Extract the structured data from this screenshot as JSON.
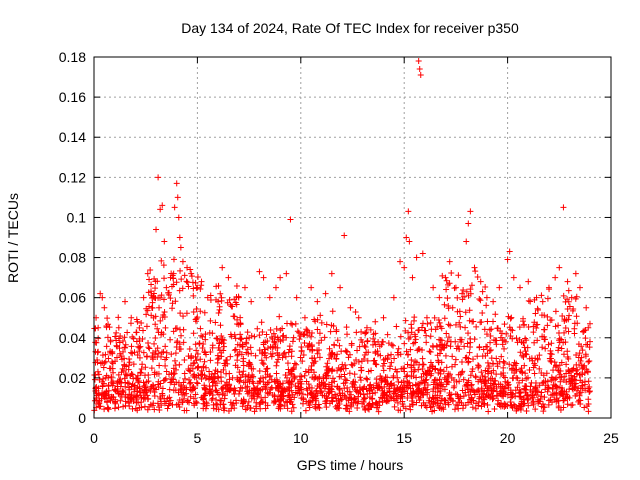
{
  "chart_data": {
    "type": "scatter",
    "title": "Day 134 of 2024, Rate Of TEC Index for receiver p350",
    "xlabel": "GPS time / hours",
    "ylabel": "ROTI / TECUs",
    "xlim": [
      0,
      25
    ],
    "ylim": [
      0,
      0.18
    ],
    "x_ticks": [
      0,
      5,
      10,
      15,
      20,
      25
    ],
    "x_tick_labels": [
      "0",
      "5",
      "10",
      "15",
      "20",
      "25"
    ],
    "y_ticks": [
      0,
      0.02,
      0.04,
      0.06,
      0.08,
      0.1,
      0.12,
      0.14,
      0.16,
      0.18
    ],
    "y_tick_labels": [
      "0",
      "0.02",
      "0.04",
      "0.06",
      "0.08",
      "0.1",
      "0.12",
      "0.14",
      "0.16",
      "0.18"
    ],
    "grid": true,
    "marker": "+",
    "color": "#ff0000",
    "series": [
      {
        "name": "ROTI",
        "points": [
          [
            0.1,
            0.05
          ],
          [
            0.2,
            0.045
          ],
          [
            0.3,
            0.062
          ],
          [
            0.4,
            0.06
          ],
          [
            0.5,
            0.055
          ],
          [
            0.8,
            0.038
          ],
          [
            1.2,
            0.045
          ],
          [
            1.5,
            0.058
          ],
          [
            1.8,
            0.05
          ],
          [
            2.1,
            0.048
          ],
          [
            2.4,
            0.06
          ],
          [
            2.6,
            0.072
          ],
          [
            2.8,
            0.055
          ],
          [
            3.0,
            0.094
          ],
          [
            3.1,
            0.12
          ],
          [
            3.2,
            0.104
          ],
          [
            3.3,
            0.106
          ],
          [
            3.4,
            0.088
          ],
          [
            3.5,
            0.065
          ],
          [
            3.7,
            0.07
          ],
          [
            3.9,
            0.105
          ],
          [
            4.0,
            0.117
          ],
          [
            4.05,
            0.11
          ],
          [
            4.1,
            0.1
          ],
          [
            4.15,
            0.09
          ],
          [
            4.2,
            0.085
          ],
          [
            4.3,
            0.078
          ],
          [
            4.5,
            0.075
          ],
          [
            4.7,
            0.072
          ],
          [
            5.0,
            0.065
          ],
          [
            5.2,
            0.068
          ],
          [
            5.5,
            0.06
          ],
          [
            6.0,
            0.058
          ],
          [
            6.2,
            0.075
          ],
          [
            6.5,
            0.07
          ],
          [
            7.0,
            0.06
          ],
          [
            7.3,
            0.065
          ],
          [
            7.6,
            0.058
          ],
          [
            8.0,
            0.073
          ],
          [
            8.2,
            0.07
          ],
          [
            8.5,
            0.06
          ],
          [
            8.8,
            0.065
          ],
          [
            9.0,
            0.07
          ],
          [
            9.3,
            0.072
          ],
          [
            9.5,
            0.099
          ],
          [
            9.8,
            0.06
          ],
          [
            10.2,
            0.05
          ],
          [
            10.5,
            0.065
          ],
          [
            10.8,
            0.058
          ],
          [
            11.2,
            0.062
          ],
          [
            11.5,
            0.072
          ],
          [
            11.9,
            0.065
          ],
          [
            12.1,
            0.091
          ],
          [
            12.4,
            0.055
          ],
          [
            12.8,
            0.05
          ],
          [
            13.2,
            0.045
          ],
          [
            13.6,
            0.048
          ],
          [
            14.0,
            0.05
          ],
          [
            14.5,
            0.06
          ],
          [
            14.8,
            0.078
          ],
          [
            15.0,
            0.075
          ],
          [
            15.1,
            0.09
          ],
          [
            15.2,
            0.103
          ],
          [
            15.25,
            0.088
          ],
          [
            15.4,
            0.07
          ],
          [
            15.6,
            0.08
          ],
          [
            15.7,
            0.178
          ],
          [
            15.75,
            0.174
          ],
          [
            15.8,
            0.171
          ],
          [
            15.9,
            0.082
          ],
          [
            16.1,
            0.05
          ],
          [
            16.4,
            0.065
          ],
          [
            16.7,
            0.06
          ],
          [
            17.0,
            0.07
          ],
          [
            17.2,
            0.078
          ],
          [
            17.5,
            0.065
          ],
          [
            17.8,
            0.062
          ],
          [
            18.0,
            0.088
          ],
          [
            18.1,
            0.097
          ],
          [
            18.2,
            0.103
          ],
          [
            18.4,
            0.075
          ],
          [
            18.7,
            0.068
          ],
          [
            19.0,
            0.06
          ],
          [
            19.3,
            0.058
          ],
          [
            19.6,
            0.065
          ],
          [
            20.0,
            0.079
          ],
          [
            20.1,
            0.083
          ],
          [
            20.3,
            0.07
          ],
          [
            20.6,
            0.065
          ],
          [
            21.0,
            0.068
          ],
          [
            21.4,
            0.06
          ],
          [
            21.7,
            0.058
          ],
          [
            22.0,
            0.065
          ],
          [
            22.3,
            0.07
          ],
          [
            22.5,
            0.075
          ],
          [
            22.7,
            0.105
          ],
          [
            22.9,
            0.068
          ],
          [
            23.1,
            0.06
          ],
          [
            23.3,
            0.072
          ],
          [
            23.5,
            0.065
          ],
          [
            23.8,
            0.055
          ],
          [
            23.9,
            0.045
          ]
        ]
      }
    ]
  }
}
